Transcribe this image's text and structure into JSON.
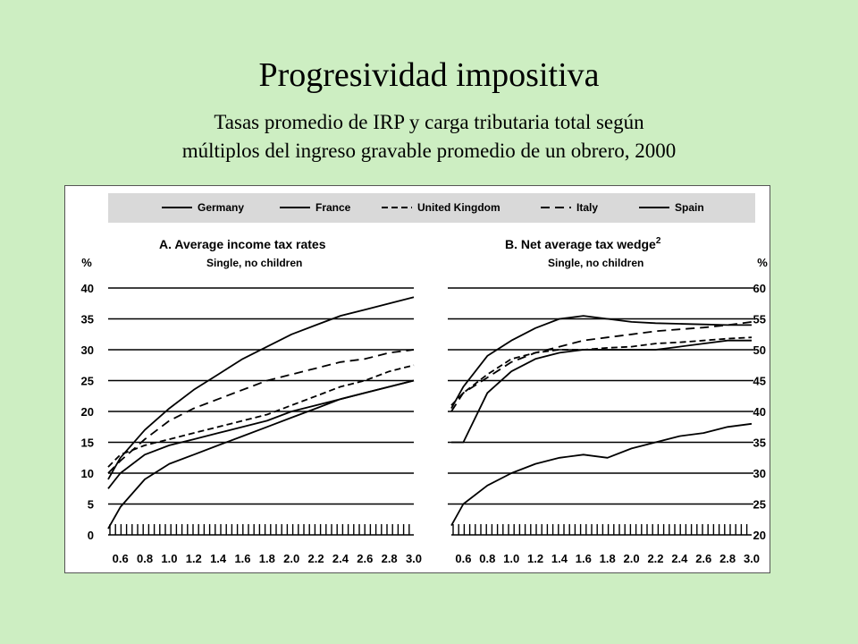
{
  "slide": {
    "title": "Progresividad impositiva",
    "subtitle_line1": "Tasas promedio de IRP y carga tributaria total según",
    "subtitle_line2": "múltiplos del ingreso gravable promedio de un obrero, 2000"
  },
  "colors": {
    "background": "#cdeec2",
    "legend_band": "#d9d9d9",
    "ink": "#000000"
  },
  "legend": [
    {
      "name": "Germany",
      "dash": "solid"
    },
    {
      "name": "France",
      "dash": "solid"
    },
    {
      "name": "United Kingdom",
      "dash": "dashed"
    },
    {
      "name": "Italy",
      "dash": "longdash"
    },
    {
      "name": "Spain",
      "dash": "solid"
    }
  ],
  "chart_data": [
    {
      "type": "line",
      "panel": "A",
      "title": "A.  Average income tax rates",
      "subtitle": "Single, no children",
      "ylabel": "%",
      "ylim": [
        0,
        40
      ],
      "yticks": [
        0,
        5,
        10,
        15,
        20,
        25,
        30,
        35,
        40
      ],
      "xlim": [
        0.5,
        3.0
      ],
      "xticks": [
        "0.6",
        "0.8",
        "1.0",
        "1.2",
        "1.4",
        "1.6",
        "1.8",
        "2.0",
        "2.2",
        "2.4",
        "2.6",
        "2.8",
        "3.0"
      ],
      "grid": true,
      "x": [
        0.5,
        0.6,
        0.8,
        1.0,
        1.2,
        1.4,
        1.6,
        1.8,
        2.0,
        2.2,
        2.4,
        2.6,
        2.8,
        3.0
      ],
      "series": [
        {
          "name": "Germany",
          "values": [
            9,
            12.5,
            17,
            20.5,
            23.5,
            26,
            28.5,
            30.5,
            32.5,
            34,
            35.5,
            36.5,
            37.5,
            38.5
          ]
        },
        {
          "name": "France",
          "values": [
            1,
            4.5,
            9,
            11.5,
            13,
            14.5,
            16,
            17.5,
            19,
            20.5,
            22,
            23,
            24,
            25
          ]
        },
        {
          "name": "United Kingdom",
          "values": [
            11,
            13,
            14.5,
            15.5,
            16.5,
            17.5,
            18.5,
            19.5,
            21,
            22.5,
            24,
            25,
            26.5,
            27.5
          ]
        },
        {
          "name": "Italy",
          "values": [
            10,
            12,
            15.5,
            18.5,
            20.5,
            22,
            23.5,
            25,
            26,
            27,
            28,
            28.5,
            29.5,
            30
          ]
        },
        {
          "name": "Spain",
          "values": [
            7.5,
            10,
            13,
            14.5,
            15.5,
            16.5,
            17.5,
            18.5,
            20,
            21,
            22,
            23,
            24,
            25
          ]
        }
      ]
    },
    {
      "type": "line",
      "panel": "B",
      "title": "B.  Net average tax wedge",
      "title_superscript": "2",
      "subtitle": "Single, no children",
      "ylabel": "%",
      "ylim": [
        20,
        60
      ],
      "yticks": [
        20,
        25,
        30,
        35,
        40,
        45,
        50,
        55,
        60
      ],
      "xlim": [
        0.5,
        3.0
      ],
      "xticks": [
        "0.6",
        "0.8",
        "1.0",
        "1.2",
        "1.4",
        "1.6",
        "1.8",
        "2.0",
        "2.2",
        "2.4",
        "2.6",
        "2.8",
        "3.0"
      ],
      "grid": true,
      "x": [
        0.5,
        0.6,
        0.8,
        1.0,
        1.2,
        1.4,
        1.6,
        1.8,
        2.0,
        2.2,
        2.4,
        2.6,
        2.8,
        3.0
      ],
      "series": [
        {
          "name": "Germany",
          "values": [
            40.5,
            44,
            49,
            51.5,
            53.5,
            55,
            55.5,
            55,
            54.5,
            54.3,
            54.2,
            54.1,
            54,
            54
          ]
        },
        {
          "name": "France",
          "values": [
            21.5,
            25,
            28,
            30,
            31.5,
            32.5,
            33,
            32.5,
            34,
            35,
            36,
            36.5,
            37.5,
            38
          ]
        },
        {
          "name": "United Kingdom",
          "values": [
            41,
            43,
            46,
            48.5,
            49.5,
            50,
            50,
            50.3,
            50.5,
            51,
            51.2,
            51.5,
            51.8,
            52
          ]
        },
        {
          "name": "Italy",
          "values": [
            40,
            43,
            45.5,
            48,
            49.5,
            50.5,
            51.5,
            52,
            52.5,
            53,
            53.3,
            53.6,
            54,
            54.5
          ]
        },
        {
          "name": "Spain",
          "values": [
            35,
            35,
            43,
            46.5,
            48.5,
            49.5,
            50,
            50,
            50,
            50,
            50.5,
            51,
            51.5,
            51.5
          ]
        }
      ]
    }
  ]
}
